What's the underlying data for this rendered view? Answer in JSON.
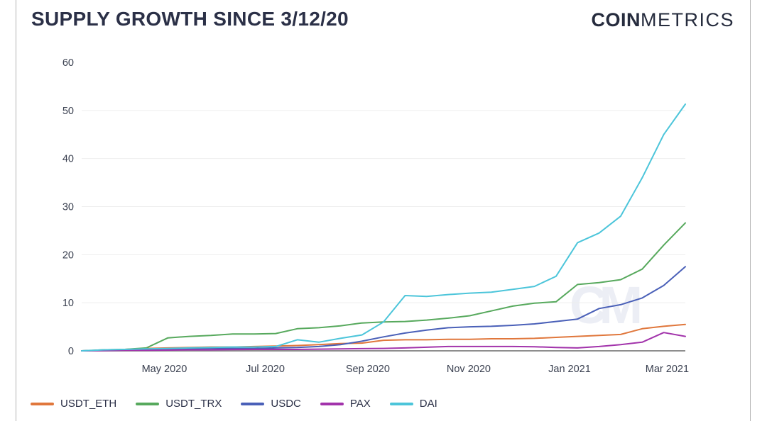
{
  "header": {
    "title": "SUPPLY GROWTH SINCE 3/12/20",
    "logo_bold": "COIN",
    "logo_light": "METRICS"
  },
  "watermark": "CM",
  "colors": {
    "background": "#ffffff",
    "title_text": "#2b3047",
    "axis_text": "#3a4050",
    "gridline": "#ededed",
    "zero_line": "#8e8e8e",
    "border_line": "#b3b3b3",
    "watermark": "#eceef5",
    "usdt_eth": "#e0773c",
    "usdt_trx": "#57a95d",
    "usdc": "#4a60b8",
    "pax": "#a233ab",
    "dai": "#4cc5da"
  },
  "chart_data": {
    "type": "line",
    "title": "SUPPLY GROWTH SINCE 3/12/20",
    "xlabel": "",
    "ylabel": "",
    "ylim": [
      0,
      60
    ],
    "yticks": [
      0,
      10,
      20,
      30,
      40,
      50,
      60
    ],
    "grid": "horizontal",
    "legend_position": "bottom",
    "x": [
      "2020-03-12",
      "2020-03-25",
      "2020-04-07",
      "2020-04-20",
      "2020-05-03",
      "2020-05-16",
      "2020-05-29",
      "2020-06-11",
      "2020-06-24",
      "2020-07-07",
      "2020-07-20",
      "2020-08-02",
      "2020-08-15",
      "2020-08-28",
      "2020-09-10",
      "2020-09-23",
      "2020-10-06",
      "2020-10-19",
      "2020-11-01",
      "2020-11-14",
      "2020-11-27",
      "2020-12-10",
      "2020-12-23",
      "2021-01-05",
      "2021-01-18",
      "2021-01-31",
      "2021-02-13",
      "2021-02-26",
      "2021-03-11"
    ],
    "xticks": [
      {
        "label": "May 2020",
        "day": 50
      },
      {
        "label": "Jul 2020",
        "day": 111
      },
      {
        "label": "Sep 2020",
        "day": 173
      },
      {
        "label": "Nov 2020",
        "day": 234
      },
      {
        "label": "Jan 2021",
        "day": 295
      },
      {
        "label": "Mar 2021",
        "day": 354
      }
    ],
    "series": [
      {
        "name": "USDT_ETH",
        "color": "#e0773c",
        "values": [
          0,
          0.1,
          0.3,
          0.5,
          0.6,
          0.7,
          0.8,
          0.8,
          0.9,
          1.0,
          1.1,
          1.3,
          1.5,
          1.6,
          2.2,
          2.3,
          2.3,
          2.4,
          2.4,
          2.5,
          2.5,
          2.6,
          2.8,
          3.0,
          3.2,
          3.4,
          4.6,
          5.1,
          5.5
        ]
      },
      {
        "name": "USDT_TRX",
        "color": "#57a95d",
        "values": [
          0,
          0.2,
          0.3,
          0.6,
          2.7,
          3.0,
          3.2,
          3.5,
          3.5,
          3.6,
          4.6,
          4.8,
          5.2,
          5.8,
          6.0,
          6.1,
          6.4,
          6.8,
          7.3,
          8.3,
          9.3,
          9.9,
          10.2,
          13.8,
          14.2,
          14.8,
          17.0,
          22.0,
          26.6
        ]
      },
      {
        "name": "USDC",
        "color": "#4a60b8",
        "values": [
          0,
          0.1,
          0.2,
          0.3,
          0.4,
          0.4,
          0.5,
          0.5,
          0.5,
          0.6,
          0.7,
          0.9,
          1.3,
          2.0,
          2.9,
          3.7,
          4.3,
          4.8,
          5.0,
          5.1,
          5.3,
          5.6,
          6.1,
          6.6,
          8.8,
          9.6,
          11.0,
          13.6,
          17.5
        ]
      },
      {
        "name": "PAX",
        "color": "#a233ab",
        "values": [
          0,
          0.05,
          0.1,
          0.1,
          0.15,
          0.2,
          0.2,
          0.25,
          0.3,
          0.3,
          0.3,
          0.35,
          0.4,
          0.45,
          0.5,
          0.6,
          0.75,
          0.9,
          0.9,
          0.9,
          0.9,
          0.85,
          0.7,
          0.6,
          0.9,
          1.3,
          1.8,
          3.8,
          3.0
        ]
      },
      {
        "name": "DAI",
        "color": "#4cc5da",
        "values": [
          0,
          0.2,
          0.3,
          0.4,
          0.5,
          0.6,
          0.7,
          0.8,
          0.8,
          0.9,
          2.3,
          1.8,
          2.6,
          3.3,
          6.0,
          11.5,
          11.3,
          11.7,
          12.0,
          12.2,
          12.8,
          13.4,
          15.5,
          22.5,
          24.5,
          28.0,
          36.0,
          45.0,
          51.3
        ]
      }
    ]
  }
}
